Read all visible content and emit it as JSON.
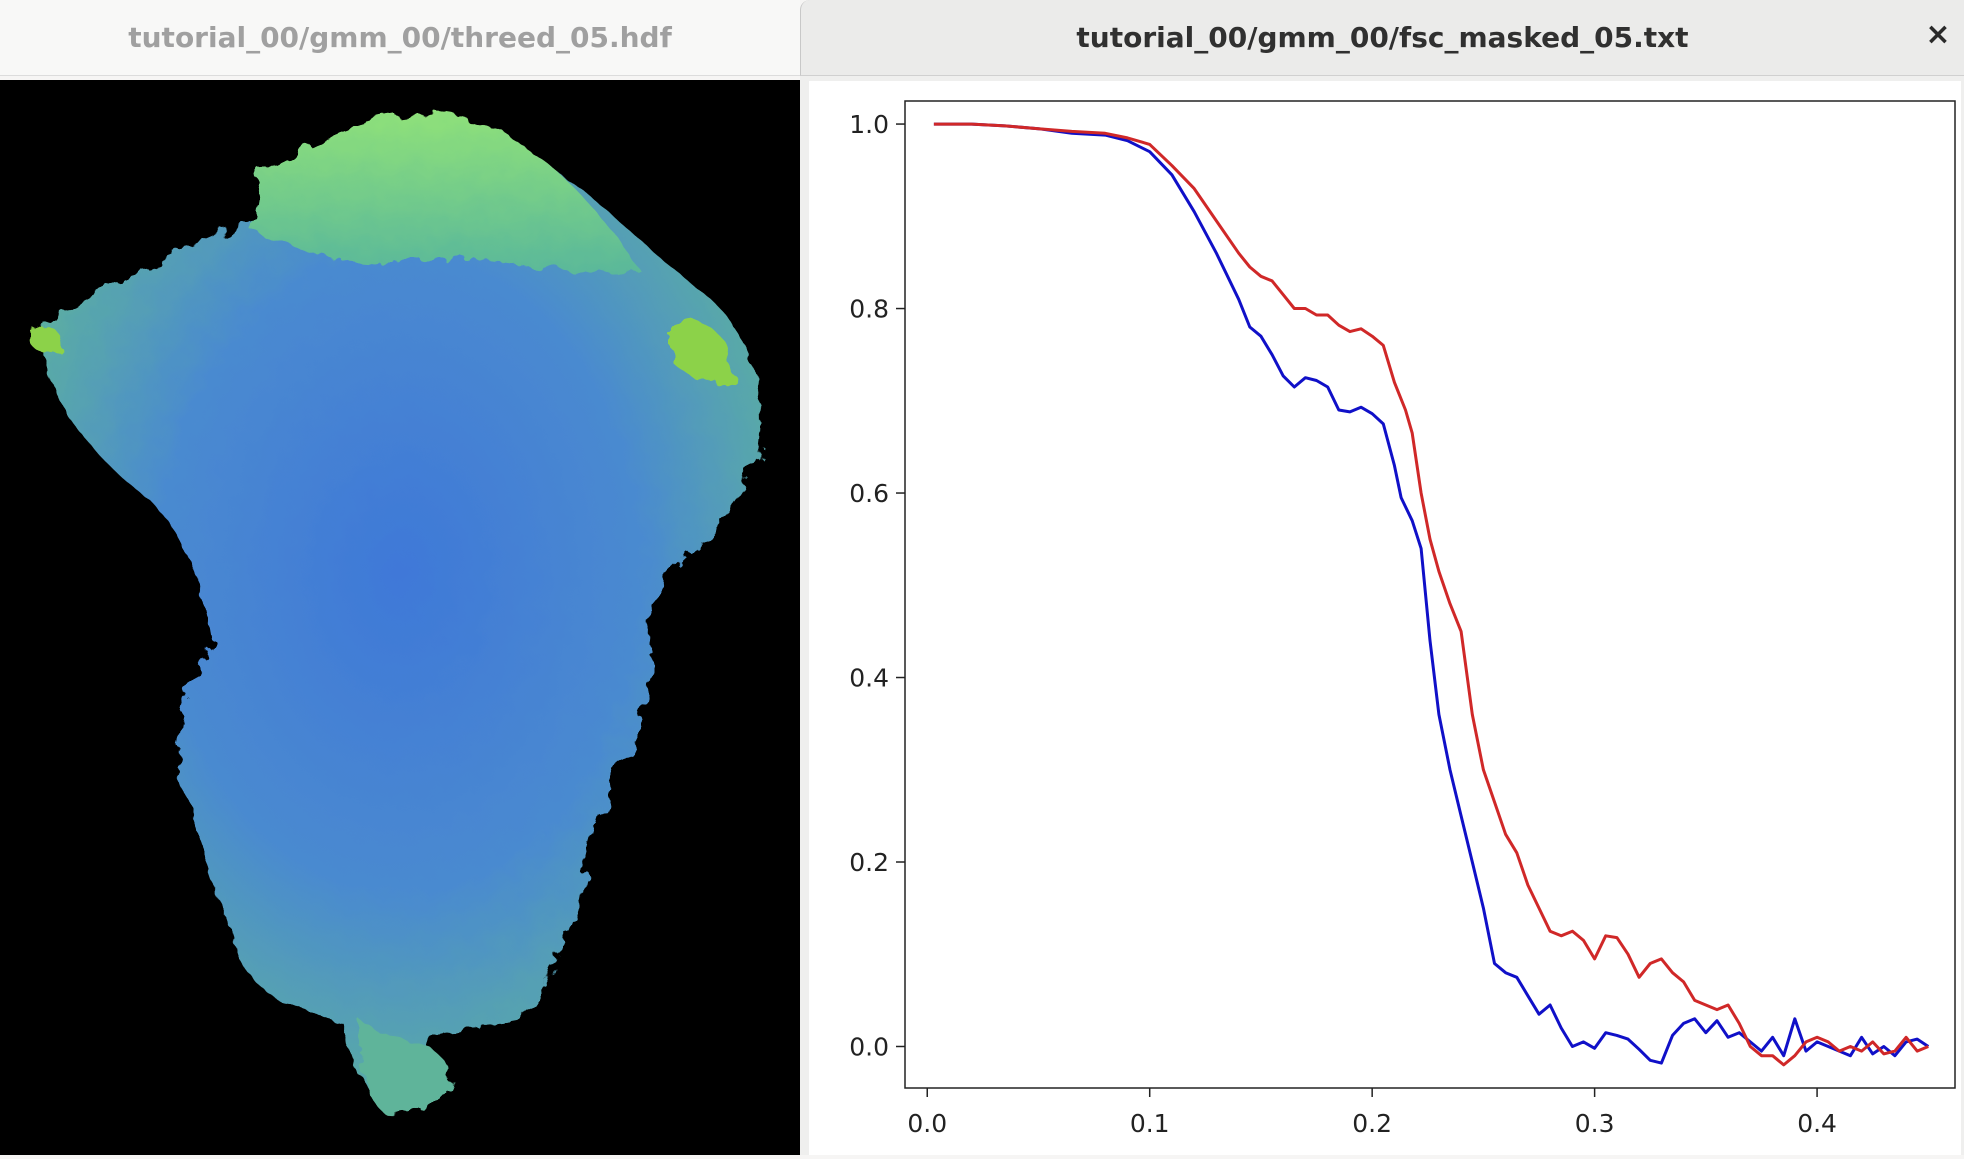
{
  "windows": {
    "left": {
      "title": "tutorial_00/gmm_00/threed_05.hdf"
    },
    "right": {
      "title": "tutorial_00/gmm_00/fsc_masked_05.txt",
      "close_icon": "×"
    }
  },
  "colors": {
    "series_blue": "#1010c8",
    "series_red": "#d02828"
  },
  "chart_data": {
    "type": "line",
    "xlim": [
      -0.01,
      0.462
    ],
    "ylim": [
      -0.045,
      1.025
    ],
    "xticks": [
      "0.0",
      "0.1",
      "0.2",
      "0.3",
      "0.4"
    ],
    "xtick_values": [
      0.0,
      0.1,
      0.2,
      0.3,
      0.4
    ],
    "yticks": [
      "0.0",
      "0.2",
      "0.4",
      "0.6",
      "0.8",
      "1.0"
    ],
    "ytick_values": [
      0.0,
      0.2,
      0.4,
      0.6,
      0.8,
      1.0
    ],
    "grid": false,
    "series": [
      {
        "color": "#1010c8",
        "points": [
          [
            0.003,
            1.0
          ],
          [
            0.02,
            1.0
          ],
          [
            0.035,
            0.998
          ],
          [
            0.05,
            0.995
          ],
          [
            0.065,
            0.99
          ],
          [
            0.08,
            0.988
          ],
          [
            0.09,
            0.982
          ],
          [
            0.1,
            0.97
          ],
          [
            0.11,
            0.945
          ],
          [
            0.12,
            0.905
          ],
          [
            0.13,
            0.86
          ],
          [
            0.14,
            0.81
          ],
          [
            0.145,
            0.78
          ],
          [
            0.15,
            0.77
          ],
          [
            0.155,
            0.75
          ],
          [
            0.16,
            0.727
          ],
          [
            0.165,
            0.715
          ],
          [
            0.17,
            0.725
          ],
          [
            0.175,
            0.722
          ],
          [
            0.18,
            0.715
          ],
          [
            0.185,
            0.69
          ],
          [
            0.19,
            0.688
          ],
          [
            0.195,
            0.693
          ],
          [
            0.2,
            0.686
          ],
          [
            0.205,
            0.675
          ],
          [
            0.21,
            0.63
          ],
          [
            0.213,
            0.595
          ],
          [
            0.218,
            0.57
          ],
          [
            0.222,
            0.54
          ],
          [
            0.226,
            0.44
          ],
          [
            0.23,
            0.36
          ],
          [
            0.235,
            0.3
          ],
          [
            0.24,
            0.25
          ],
          [
            0.245,
            0.2
          ],
          [
            0.25,
            0.15
          ],
          [
            0.255,
            0.09
          ],
          [
            0.26,
            0.08
          ],
          [
            0.265,
            0.075
          ],
          [
            0.27,
            0.055
          ],
          [
            0.275,
            0.035
          ],
          [
            0.28,
            0.045
          ],
          [
            0.285,
            0.02
          ],
          [
            0.29,
            0.0
          ],
          [
            0.295,
            0.005
          ],
          [
            0.3,
            -0.002
          ],
          [
            0.305,
            0.015
          ],
          [
            0.31,
            0.012
          ],
          [
            0.315,
            0.008
          ],
          [
            0.32,
            -0.003
          ],
          [
            0.325,
            -0.015
          ],
          [
            0.33,
            -0.018
          ],
          [
            0.335,
            0.012
          ],
          [
            0.34,
            0.025
          ],
          [
            0.345,
            0.03
          ],
          [
            0.35,
            0.015
          ],
          [
            0.355,
            0.028
          ],
          [
            0.36,
            0.01
          ],
          [
            0.365,
            0.015
          ],
          [
            0.37,
            0.005
          ],
          [
            0.375,
            -0.005
          ],
          [
            0.38,
            0.01
          ],
          [
            0.385,
            -0.01
          ],
          [
            0.39,
            0.03
          ],
          [
            0.395,
            -0.005
          ],
          [
            0.4,
            0.005
          ],
          [
            0.405,
            0.0
          ],
          [
            0.41,
            -0.005
          ],
          [
            0.415,
            -0.01
          ],
          [
            0.42,
            0.01
          ],
          [
            0.425,
            -0.008
          ],
          [
            0.43,
            0.0
          ],
          [
            0.435,
            -0.01
          ],
          [
            0.44,
            0.005
          ],
          [
            0.445,
            0.008
          ],
          [
            0.45,
            0.0
          ]
        ]
      },
      {
        "color": "#d02828",
        "points": [
          [
            0.003,
            1.0
          ],
          [
            0.02,
            1.0
          ],
          [
            0.035,
            0.998
          ],
          [
            0.05,
            0.995
          ],
          [
            0.065,
            0.992
          ],
          [
            0.08,
            0.99
          ],
          [
            0.09,
            0.985
          ],
          [
            0.1,
            0.978
          ],
          [
            0.11,
            0.955
          ],
          [
            0.12,
            0.93
          ],
          [
            0.13,
            0.895
          ],
          [
            0.14,
            0.86
          ],
          [
            0.145,
            0.845
          ],
          [
            0.15,
            0.835
          ],
          [
            0.155,
            0.83
          ],
          [
            0.16,
            0.815
          ],
          [
            0.165,
            0.8
          ],
          [
            0.17,
            0.8
          ],
          [
            0.175,
            0.793
          ],
          [
            0.18,
            0.793
          ],
          [
            0.185,
            0.782
          ],
          [
            0.19,
            0.775
          ],
          [
            0.195,
            0.778
          ],
          [
            0.2,
            0.77
          ],
          [
            0.205,
            0.76
          ],
          [
            0.21,
            0.72
          ],
          [
            0.215,
            0.69
          ],
          [
            0.218,
            0.665
          ],
          [
            0.222,
            0.6
          ],
          [
            0.226,
            0.55
          ],
          [
            0.23,
            0.515
          ],
          [
            0.235,
            0.48
          ],
          [
            0.24,
            0.45
          ],
          [
            0.245,
            0.36
          ],
          [
            0.25,
            0.3
          ],
          [
            0.255,
            0.265
          ],
          [
            0.26,
            0.23
          ],
          [
            0.265,
            0.21
          ],
          [
            0.27,
            0.175
          ],
          [
            0.275,
            0.15
          ],
          [
            0.28,
            0.125
          ],
          [
            0.285,
            0.12
          ],
          [
            0.29,
            0.125
          ],
          [
            0.295,
            0.115
          ],
          [
            0.3,
            0.095
          ],
          [
            0.305,
            0.12
          ],
          [
            0.31,
            0.118
          ],
          [
            0.315,
            0.1
          ],
          [
            0.32,
            0.075
          ],
          [
            0.325,
            0.09
          ],
          [
            0.33,
            0.095
          ],
          [
            0.335,
            0.08
          ],
          [
            0.34,
            0.07
          ],
          [
            0.345,
            0.05
          ],
          [
            0.35,
            0.045
          ],
          [
            0.355,
            0.04
          ],
          [
            0.36,
            0.045
          ],
          [
            0.365,
            0.025
          ],
          [
            0.37,
            0.0
          ],
          [
            0.375,
            -0.01
          ],
          [
            0.38,
            -0.01
          ],
          [
            0.385,
            -0.02
          ],
          [
            0.39,
            -0.01
          ],
          [
            0.395,
            0.005
          ],
          [
            0.4,
            0.01
          ],
          [
            0.405,
            0.005
          ],
          [
            0.41,
            -0.005
          ],
          [
            0.415,
            0.0
          ],
          [
            0.42,
            -0.005
          ],
          [
            0.425,
            0.005
          ],
          [
            0.43,
            -0.008
          ],
          [
            0.435,
            -0.005
          ],
          [
            0.44,
            0.01
          ],
          [
            0.445,
            -0.005
          ],
          [
            0.45,
            0.0
          ]
        ]
      }
    ]
  }
}
